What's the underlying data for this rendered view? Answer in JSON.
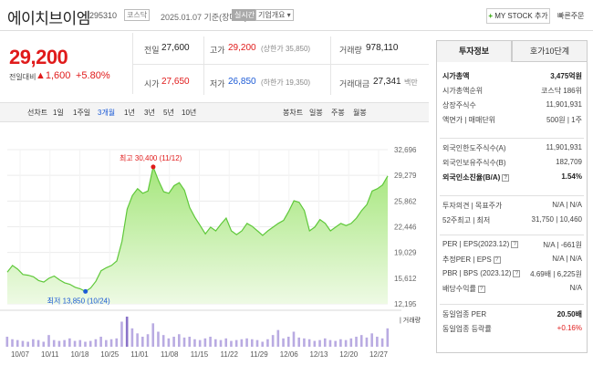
{
  "header": {
    "stock_name": "에이치브이엠",
    "stock_code": "295310",
    "market": "코스닥",
    "date": "2025.01.07 기준(장마감)",
    "status": "실시간",
    "company_overview": "기업개요 ▾",
    "my_stock_plus": "+",
    "my_stock": "MY STOCK 추가",
    "quick_order": "빠른주문"
  },
  "price": {
    "current": "29,200",
    "change_label": "전일대비",
    "change": "▲1,600",
    "change_pct": "+5.80%"
  },
  "quote": {
    "prev_close_label": "전일",
    "prev_close": "27,600",
    "high_label": "고가",
    "high": "29,200",
    "high_note": "(상한가 35,850)",
    "volume_label": "거래량",
    "volume": "978,110",
    "open_label": "시가",
    "open": "27,650",
    "low_label": "저가",
    "low": "26,850",
    "low_note": "(하한가 19,350)",
    "amount_label": "거래대금",
    "amount": "27,341",
    "amount_unit": "백만"
  },
  "periods": {
    "line_chart": "선차트",
    "items": [
      "1일",
      "1주일",
      "3개월",
      "1년",
      "3년",
      "5년",
      "10년"
    ],
    "active": "3개월",
    "candle_chart": "봉차트",
    "candle_items": [
      "일봉",
      "주봉",
      "월봉"
    ]
  },
  "chart_data": {
    "type": "area",
    "y_ticks": [
      "32,696",
      "29,279",
      "25,862",
      "22,446",
      "19,029",
      "15,612",
      "12,195"
    ],
    "ylim": [
      12195,
      32696
    ],
    "x_ticks": [
      "10/07",
      "10/11",
      "10/18",
      "10/25",
      "11/01",
      "11/08",
      "11/15",
      "11/22",
      "11/29",
      "12/06",
      "12/13",
      "12/20",
      "12/27"
    ],
    "values": [
      16400,
      17300,
      16800,
      16100,
      16000,
      15800,
      15300,
      15100,
      15600,
      15900,
      15400,
      15000,
      14800,
      14400,
      14200,
      13850,
      14300,
      15200,
      16600,
      17000,
      17300,
      17900,
      20500,
      24800,
      26600,
      27500,
      26900,
      27200,
      30400,
      28600,
      27100,
      26900,
      27900,
      28300,
      27300,
      25000,
      23700,
      22600,
      21500,
      22400,
      21900,
      22800,
      23600,
      21900,
      21400,
      21900,
      22900,
      22500,
      21900,
      21300,
      21900,
      22400,
      22900,
      23300,
      24500,
      25900,
      25700,
      24600,
      21900,
      22400,
      23400,
      22900,
      21900,
      22400,
      22900,
      22600,
      22900,
      23600,
      24600,
      25400,
      27200,
      27500,
      28000,
      29200
    ],
    "volumes": [
      12,
      9,
      8,
      7,
      6,
      9,
      8,
      6,
      14,
      8,
      7,
      8,
      10,
      7,
      8,
      6,
      7,
      9,
      12,
      8,
      9,
      10,
      30,
      36,
      22,
      16,
      12,
      15,
      28,
      18,
      14,
      10,
      12,
      15,
      11,
      12,
      9,
      8,
      10,
      12,
      9,
      8,
      10,
      7,
      8,
      9,
      10,
      9,
      8,
      6,
      9,
      14,
      20,
      10,
      12,
      18,
      11,
      10,
      9,
      7,
      8,
      10,
      8,
      7,
      9,
      8,
      10,
      12,
      14,
      11,
      16,
      12,
      10,
      22
    ],
    "max_annotation": "최고 30,400 (11/12)",
    "min_annotation": "최저 13,850 (10/24)",
    "volume_label": "거래량"
  },
  "side": {
    "tab_invest": "투자정보",
    "tab_quote": "호가10단계",
    "rows1": [
      {
        "l": "시가총액",
        "r": "3,475억원",
        "bold": true
      },
      {
        "l": "시가총액순위",
        "r": "코스닥 186위"
      },
      {
        "l": "상장주식수",
        "r": "11,901,931"
      },
      {
        "l": "액면가 | 매매단위",
        "r": "500원 | 1주"
      }
    ],
    "rows2": [
      {
        "l": "외국인한도주식수(A)",
        "r": "11,901,931"
      },
      {
        "l": "외국인보유주식수(B)",
        "r": "182,709"
      },
      {
        "l": "외국인소진율(B/A)",
        "r": "1.54%",
        "bold": true,
        "q": true
      }
    ],
    "rows3": [
      {
        "l": "투자의견 | 목표주가",
        "r": "N/A | N/A"
      },
      {
        "l": "52주최고 | 최저",
        "r": "31,750 | 10,460"
      }
    ],
    "rows4": [
      {
        "l": "PER | EPS(2023.12)",
        "r": "N/A | -661원",
        "q": true
      },
      {
        "l": "추정PER | EPS",
        "r": "N/A | N/A",
        "q": true
      },
      {
        "l": "PBR | BPS (2023.12)",
        "r": "4.69배 | 6,225원",
        "q": true
      },
      {
        "l": "배당수익률",
        "r": "N/A",
        "q": true
      }
    ],
    "industry_per_label": "동일업종 PER",
    "industry_per": "20.50배",
    "industry_change_label": "동일업종 등락률",
    "industry_change": "+0.16%"
  }
}
